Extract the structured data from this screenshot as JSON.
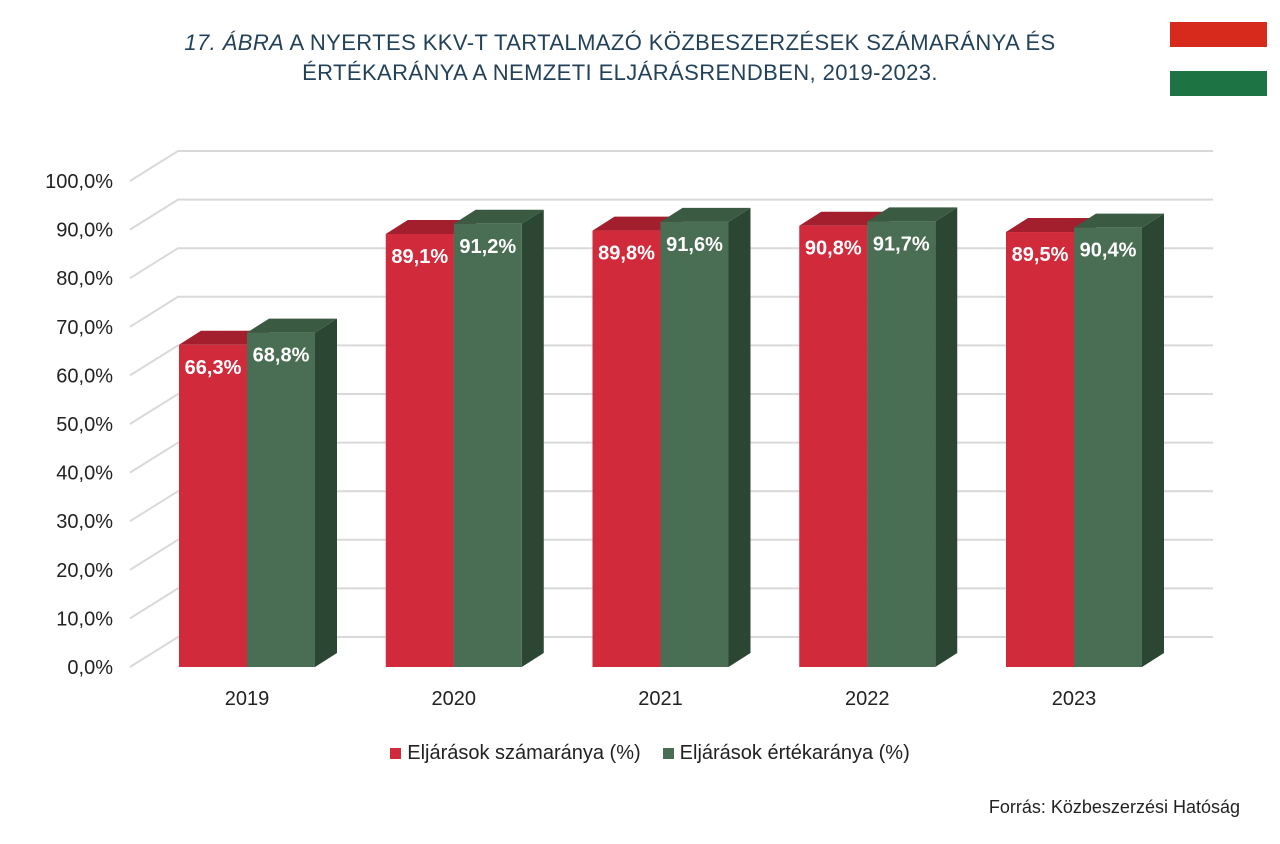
{
  "header": {
    "figure_label": "17. ÁBRA",
    "title_line1": "A NYERTES KKV-T TARTALMAZÓ KÖZBESZERZÉSEK SZÁMARÁNYA ÉS",
    "title_line2": "ÉRTÉKARÁNYA A NEMZETI ELJÁRÁSRENDBEN, 2019-2023."
  },
  "flag": {
    "colors": [
      "#d82a1c",
      "#ffffff",
      "#1e7344"
    ]
  },
  "colors": {
    "red": "#d12a3b",
    "red_side": "#8b1a26",
    "red_top": "#a31f2d",
    "green": "#4a6e53",
    "green_side": "#2b4733",
    "green_top": "#3a5a41",
    "grid": "#d9d9d9"
  },
  "chart_data": {
    "type": "bar",
    "categories": [
      "2019",
      "2020",
      "2021",
      "2022",
      "2023"
    ],
    "series": [
      {
        "name": "Eljárások számaránya (%)",
        "values": [
          66.3,
          89.1,
          89.8,
          90.8,
          89.5
        ],
        "labels": [
          "66,3%",
          "89,1%",
          "89,8%",
          "90,8%",
          "89,5%"
        ]
      },
      {
        "name": "Eljárások értékaránya (%)",
        "values": [
          68.8,
          91.2,
          91.6,
          91.7,
          90.4
        ],
        "labels": [
          "68,8%",
          "91,2%",
          "91,6%",
          "91,7%",
          "90,4%"
        ]
      }
    ],
    "yticks": [
      "0,0%",
      "10,0%",
      "20,0%",
      "30,0%",
      "40,0%",
      "50,0%",
      "60,0%",
      "70,0%",
      "80,0%",
      "90,0%",
      "100,0%"
    ],
    "ylim": [
      0,
      100
    ],
    "legend_position": "bottom"
  },
  "source": "Forrás: Közbeszerzési Hatóság"
}
